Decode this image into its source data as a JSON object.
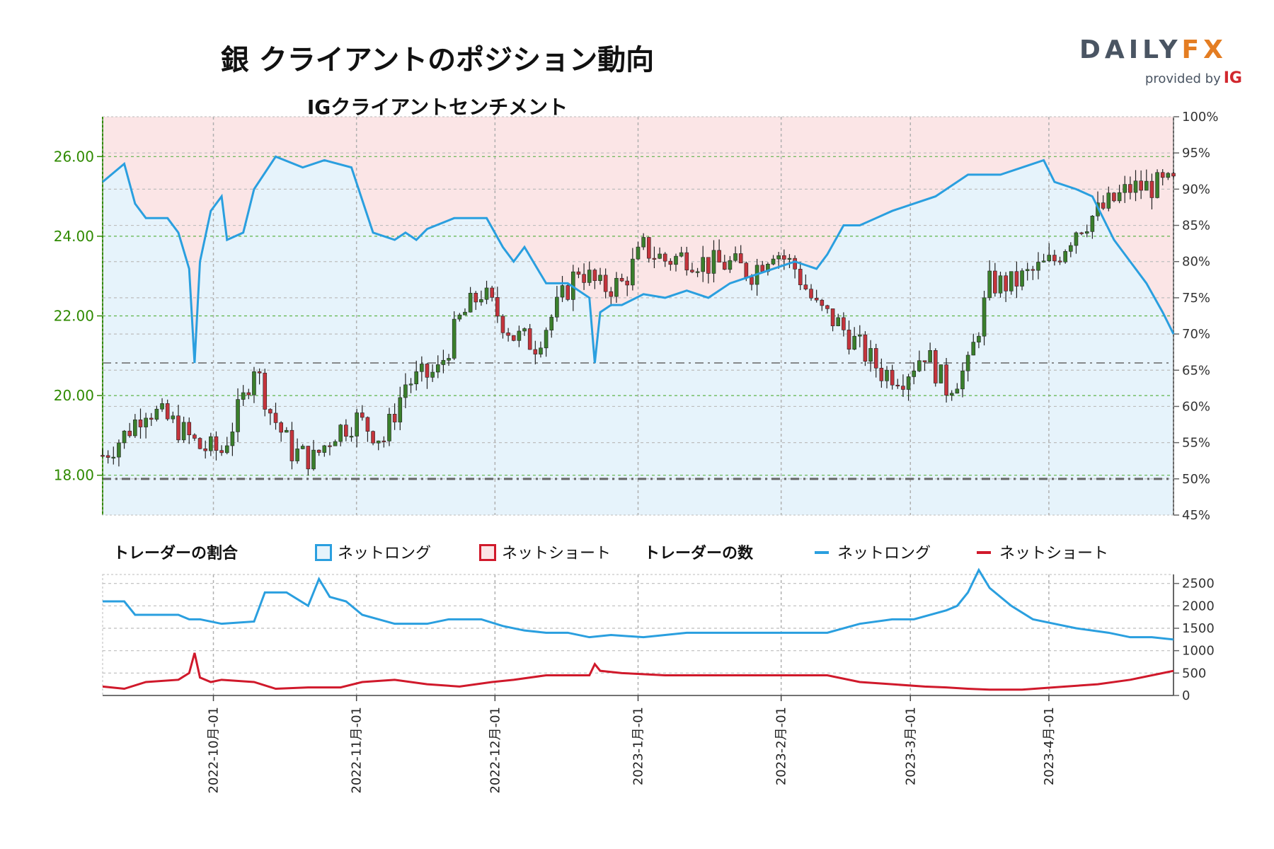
{
  "title": "銀 クライアントのポジション動向",
  "subtitle": "IGクライアントセンチメント",
  "logo": {
    "main_a": "DAILY",
    "main_b": "FX",
    "sub": "provided by",
    "brand": "IG"
  },
  "legend": {
    "ratio_title": "トレーダーの割合",
    "ratio_long": "ネットロング",
    "ratio_short": "ネットショート",
    "count_title": "トレーダーの数",
    "count_long": "ネットロング",
    "count_short": "ネットショート"
  },
  "colors": {
    "long_line": "#2a9fdf",
    "long_fill": "#e6f3fb",
    "short_line": "#d0192b",
    "short_fill": "#fbe5e6",
    "candle_up": "#3a7f2c",
    "candle_down": "#c4343c",
    "left_axis": "#2f8a00"
  },
  "chart_data": {
    "type": "candlestick+line",
    "x_ticks": [
      "2022-10月-01",
      "2022-11月-01",
      "2022-12月-01",
      "2023-1月-01",
      "2023-2月-01",
      "2023-3月-01",
      "2023-4月-01"
    ],
    "price_axis": {
      "ticks": [
        "18.00",
        "20.00",
        "22.00",
        "24.00",
        "26.00"
      ],
      "range": [
        17,
        27
      ]
    },
    "pct_axis": {
      "ticks": [
        "45%",
        "50%",
        "55%",
        "60%",
        "65%",
        "70%",
        "75%",
        "80%",
        "85%",
        "90%",
        "95%",
        "100%"
      ],
      "range": [
        45,
        100
      ]
    },
    "price_close_path": [
      [
        0,
        18.5
      ],
      [
        4,
        19.0
      ],
      [
        8,
        19.7
      ],
      [
        13,
        19.3
      ],
      [
        18,
        18.7
      ],
      [
        22,
        18.6
      ],
      [
        26,
        19.9
      ],
      [
        28,
        20.8
      ],
      [
        31,
        19.6
      ],
      [
        35,
        18.6
      ],
      [
        39,
        18.4
      ],
      [
        43,
        19.1
      ],
      [
        47,
        19.4
      ],
      [
        52,
        18.9
      ],
      [
        56,
        20.3
      ],
      [
        62,
        20.6
      ],
      [
        66,
        21.9
      ],
      [
        70,
        22.6
      ],
      [
        76,
        21.5
      ],
      [
        80,
        21.3
      ],
      [
        84,
        22.2
      ],
      [
        88,
        23.2
      ],
      [
        92,
        22.7
      ],
      [
        96,
        22.8
      ],
      [
        100,
        23.7
      ],
      [
        104,
        23.4
      ],
      [
        108,
        23.5
      ],
      [
        112,
        23.3
      ],
      [
        116,
        23.3
      ],
      [
        120,
        23.1
      ],
      [
        124,
        23.7
      ],
      [
        128,
        23.2
      ],
      [
        132,
        22.2
      ],
      [
        136,
        21.8
      ],
      [
        140,
        21.2
      ],
      [
        144,
        20.6
      ],
      [
        148,
        20.5
      ],
      [
        152,
        21.1
      ],
      [
        156,
        20.2
      ],
      [
        160,
        20.7
      ],
      [
        164,
        22.8
      ],
      [
        168,
        22.8
      ],
      [
        172,
        23.1
      ],
      [
        176,
        23.4
      ],
      [
        180,
        24.2
      ],
      [
        184,
        24.6
      ],
      [
        188,
        25.0
      ],
      [
        190,
        25.2
      ],
      [
        198,
        25.3
      ]
    ],
    "net_long_pct_path": [
      [
        0,
        91
      ],
      [
        4,
        93.5
      ],
      [
        6,
        88
      ],
      [
        8,
        86
      ],
      [
        12,
        86
      ],
      [
        14,
        84
      ],
      [
        16,
        79
      ],
      [
        17,
        66
      ],
      [
        18,
        80
      ],
      [
        20,
        87
      ],
      [
        22,
        89
      ],
      [
        23,
        83
      ],
      [
        26,
        84
      ],
      [
        28,
        90
      ],
      [
        32,
        94.5
      ],
      [
        37,
        93
      ],
      [
        41,
        94
      ],
      [
        46,
        93
      ],
      [
        50,
        84
      ],
      [
        54,
        83
      ],
      [
        56,
        84
      ],
      [
        58,
        83
      ],
      [
        60,
        84.5
      ],
      [
        65,
        86
      ],
      [
        71,
        86
      ],
      [
        74,
        82
      ],
      [
        76,
        80
      ],
      [
        78,
        82
      ],
      [
        82,
        77
      ],
      [
        86,
        77
      ],
      [
        90,
        75
      ],
      [
        91,
        66
      ],
      [
        92,
        73
      ],
      [
        94,
        74
      ],
      [
        96,
        74
      ],
      [
        100,
        75.5
      ],
      [
        104,
        75
      ],
      [
        108,
        76
      ],
      [
        112,
        75
      ],
      [
        116,
        77
      ],
      [
        120,
        78
      ],
      [
        124,
        79
      ],
      [
        128,
        80
      ],
      [
        132,
        79
      ],
      [
        134,
        81
      ],
      [
        137,
        85
      ],
      [
        140,
        85
      ],
      [
        143,
        86
      ],
      [
        146,
        87
      ],
      [
        150,
        88
      ],
      [
        154,
        89
      ],
      [
        158,
        91
      ],
      [
        160,
        92
      ],
      [
        166,
        92
      ],
      [
        170,
        93
      ],
      [
        174,
        94
      ],
      [
        176,
        91
      ],
      [
        180,
        90
      ],
      [
        183,
        89
      ],
      [
        187,
        83
      ],
      [
        190,
        80
      ],
      [
        193,
        77
      ],
      [
        196,
        73
      ],
      [
        198,
        70
      ]
    ],
    "trader_count_axis": {
      "ticks": [
        "0",
        "500",
        "1000",
        "1500",
        "2000",
        "2500"
      ],
      "range": [
        0,
        2700
      ]
    },
    "net_long_count_path": [
      [
        0,
        2100
      ],
      [
        4,
        2100
      ],
      [
        6,
        1800
      ],
      [
        10,
        1800
      ],
      [
        14,
        1800
      ],
      [
        16,
        1700
      ],
      [
        18,
        1700
      ],
      [
        22,
        1600
      ],
      [
        28,
        1650
      ],
      [
        30,
        2300
      ],
      [
        34,
        2300
      ],
      [
        38,
        2000
      ],
      [
        40,
        2600
      ],
      [
        42,
        2200
      ],
      [
        45,
        2100
      ],
      [
        48,
        1800
      ],
      [
        54,
        1600
      ],
      [
        60,
        1600
      ],
      [
        64,
        1700
      ],
      [
        70,
        1700
      ],
      [
        74,
        1550
      ],
      [
        78,
        1450
      ],
      [
        82,
        1400
      ],
      [
        86,
        1400
      ],
      [
        90,
        1300
      ],
      [
        94,
        1350
      ],
      [
        100,
        1300
      ],
      [
        108,
        1400
      ],
      [
        116,
        1400
      ],
      [
        124,
        1400
      ],
      [
        130,
        1400
      ],
      [
        134,
        1400
      ],
      [
        140,
        1600
      ],
      [
        146,
        1700
      ],
      [
        150,
        1700
      ],
      [
        156,
        1900
      ],
      [
        158,
        2000
      ],
      [
        160,
        2300
      ],
      [
        162,
        2800
      ],
      [
        164,
        2400
      ],
      [
        168,
        2000
      ],
      [
        172,
        1700
      ],
      [
        176,
        1600
      ],
      [
        180,
        1500
      ],
      [
        186,
        1400
      ],
      [
        190,
        1300
      ],
      [
        194,
        1300
      ],
      [
        198,
        1250
      ]
    ],
    "net_short_count_path": [
      [
        0,
        200
      ],
      [
        4,
        150
      ],
      [
        8,
        300
      ],
      [
        14,
        350
      ],
      [
        16,
        500
      ],
      [
        17,
        950
      ],
      [
        18,
        400
      ],
      [
        20,
        300
      ],
      [
        22,
        350
      ],
      [
        28,
        300
      ],
      [
        32,
        150
      ],
      [
        38,
        180
      ],
      [
        44,
        180
      ],
      [
        48,
        300
      ],
      [
        54,
        350
      ],
      [
        60,
        250
      ],
      [
        66,
        200
      ],
      [
        72,
        300
      ],
      [
        76,
        350
      ],
      [
        82,
        450
      ],
      [
        90,
        450
      ],
      [
        91,
        700
      ],
      [
        92,
        550
      ],
      [
        96,
        500
      ],
      [
        104,
        450
      ],
      [
        112,
        450
      ],
      [
        120,
        450
      ],
      [
        130,
        450
      ],
      [
        134,
        450
      ],
      [
        140,
        300
      ],
      [
        146,
        250
      ],
      [
        152,
        200
      ],
      [
        156,
        180
      ],
      [
        160,
        150
      ],
      [
        164,
        130
      ],
      [
        170,
        130
      ],
      [
        178,
        200
      ],
      [
        184,
        250
      ],
      [
        190,
        350
      ],
      [
        194,
        450
      ],
      [
        198,
        550
      ]
    ]
  }
}
